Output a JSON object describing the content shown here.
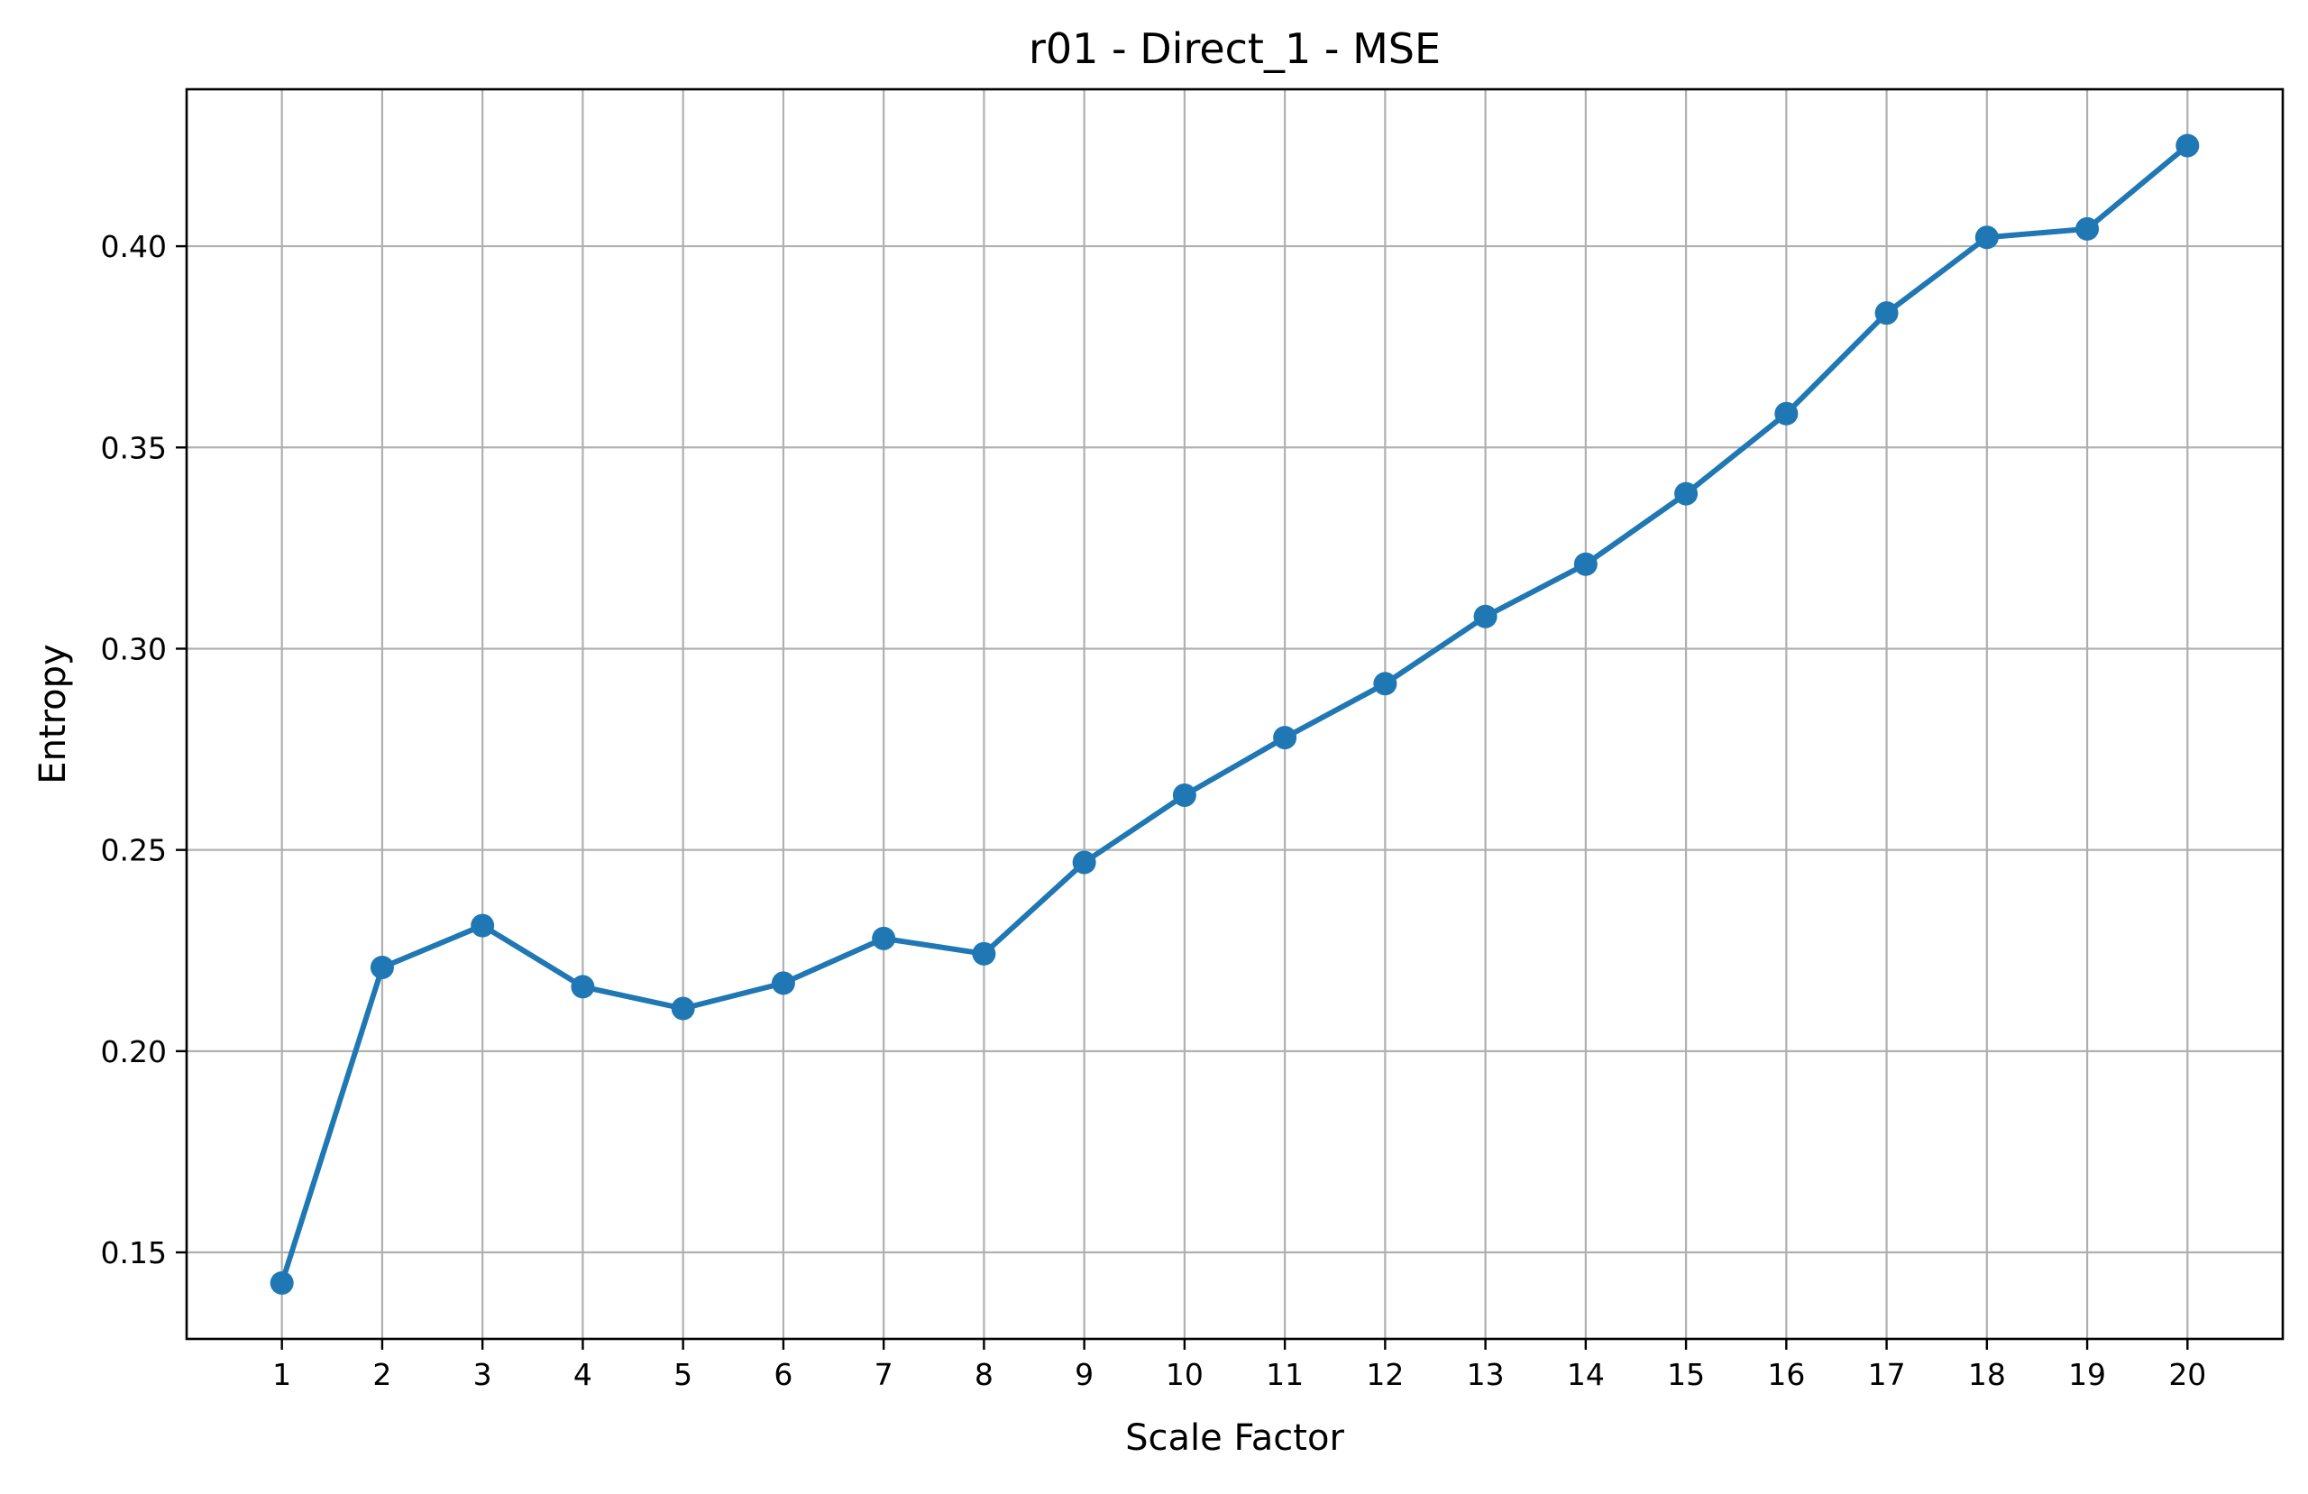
{
  "chart_data": {
    "type": "line",
    "title": "r01 - Direct_1 - MSE",
    "xlabel": "Scale Factor",
    "ylabel": "Entropy",
    "x": [
      1,
      2,
      3,
      4,
      5,
      6,
      7,
      8,
      9,
      10,
      11,
      12,
      13,
      14,
      15,
      16,
      17,
      18,
      19,
      20
    ],
    "x_tick_labels": [
      "1",
      "2",
      "3",
      "4",
      "5",
      "6",
      "7",
      "8",
      "9",
      "10",
      "11",
      "12",
      "13",
      "14",
      "15",
      "16",
      "17",
      "18",
      "19",
      "20"
    ],
    "y_ticks": [
      0.15,
      0.2,
      0.25,
      0.3,
      0.35,
      0.4
    ],
    "y_tick_labels": [
      "0.15",
      "0.20",
      "0.25",
      "0.30",
      "0.35",
      "0.40"
    ],
    "series": [
      {
        "values": [
          0.1424,
          0.2208,
          0.2312,
          0.216,
          0.2106,
          0.2169,
          0.228,
          0.2242,
          0.2469,
          0.2636,
          0.2779,
          0.2913,
          0.308,
          0.321,
          0.3385,
          0.3584,
          0.3834,
          0.4022,
          0.4043,
          0.425
        ],
        "color": "#1f77b4",
        "marker": "circle"
      }
    ],
    "xlim": [
      0.05,
      20.95
    ],
    "ylim": [
      0.1285,
      0.439
    ],
    "grid": true
  }
}
